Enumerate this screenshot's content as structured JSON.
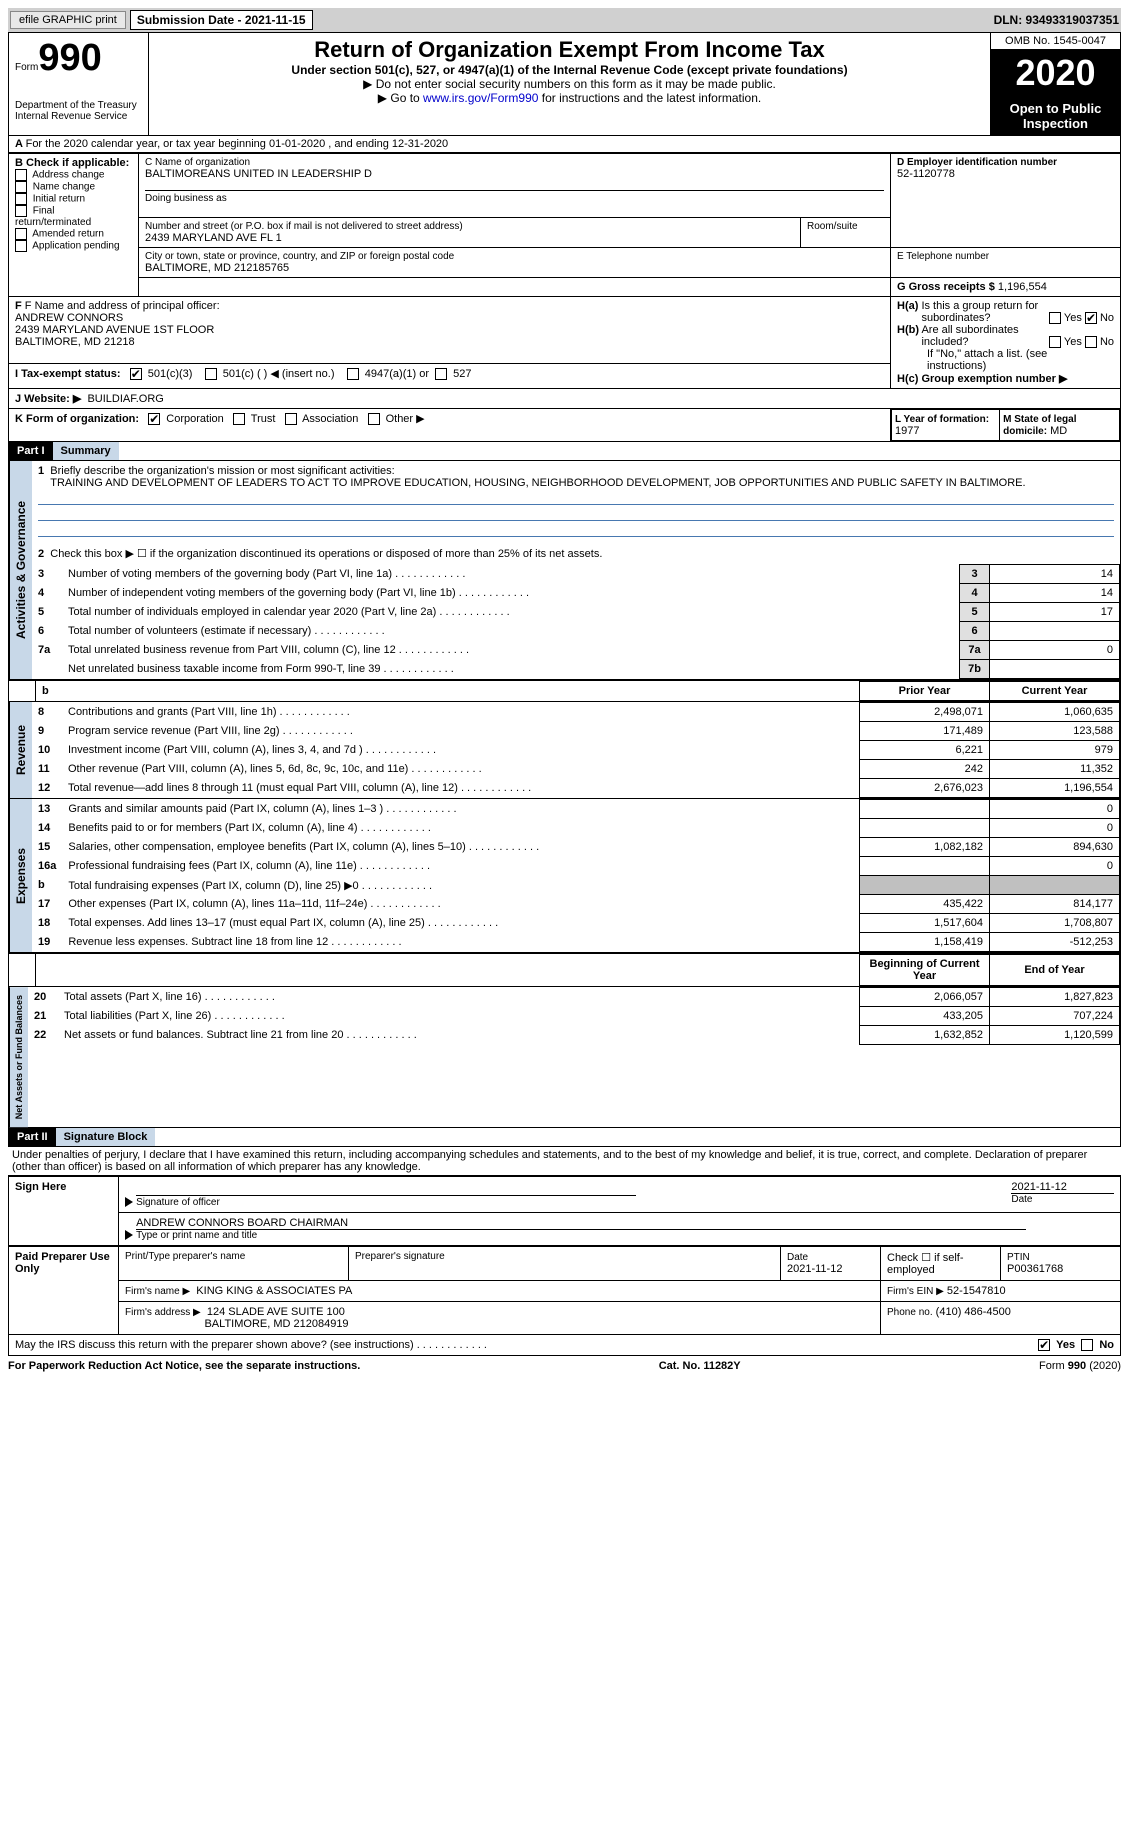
{
  "header_bar": {
    "efile_btn": "efile GRAPHIC print",
    "sub_date_label": "Submission Date - 2021-11-15",
    "dln": "DLN: 93493319037351"
  },
  "form_header": {
    "form_label": "Form",
    "form_num": "990",
    "dept1": "Department of the Treasury",
    "dept2": "Internal Revenue Service",
    "title": "Return of Organization Exempt From Income Tax",
    "subtitle": "Under section 501(c), 527, or 4947(a)(1) of the Internal Revenue Code (except private foundations)",
    "instr1": "▶ Do not enter social security numbers on this form as it may be made public.",
    "instr2_a": "▶ Go to ",
    "instr2_link": "www.irs.gov/Form990",
    "instr2_b": " for instructions and the latest information.",
    "omb": "OMB No. 1545-0047",
    "year": "2020",
    "open1": "Open to Public",
    "open2": "Inspection"
  },
  "line_A": "For the 2020 calendar year, or tax year beginning 01-01-2020   , and ending 12-31-2020",
  "section_B": {
    "label": "B Check if applicable:",
    "opts": [
      "Address change",
      "Name change",
      "Initial return",
      "Final return/terminated",
      "Amended return",
      "Application pending"
    ]
  },
  "section_C": {
    "name_label": "C Name of organization",
    "name": "BALTIMOREANS UNITED IN LEADERSHIP D",
    "dba_label": "Doing business as",
    "addr_label": "Number and street (or P.O. box if mail is not delivered to street address)",
    "room_label": "Room/suite",
    "addr": "2439 MARYLAND AVE FL 1",
    "city_label": "City or town, state or province, country, and ZIP or foreign postal code",
    "city": "BALTIMORE, MD  212185765"
  },
  "section_D": {
    "label": "D Employer identification number",
    "val": "52-1120778"
  },
  "section_E": {
    "label": "E Telephone number"
  },
  "section_G": {
    "label": "G Gross receipts $",
    "val": "1,196,554"
  },
  "section_F": {
    "label": "F  Name and address of principal officer:",
    "name": "ANDREW CONNORS",
    "addr1": "2439 MARYLAND AVENUE 1ST FLOOR",
    "addr2": "BALTIMORE, MD  21218"
  },
  "section_H": {
    "a_label": "H(a)  Is this a group return for subordinates?",
    "b_label": "H(b)  Are all subordinates included?",
    "b_note": "If \"No,\" attach a list. (see instructions)",
    "c_label": "H(c)  Group exemption number ▶",
    "yes": "Yes",
    "no": "No"
  },
  "section_I": {
    "label": "I  Tax-exempt status:",
    "o1": "501(c)(3)",
    "o2": "501(c) (  ) ◀ (insert no.)",
    "o3": "4947(a)(1) or",
    "o4": "527"
  },
  "section_J": {
    "label": "J  Website: ▶",
    "val": "BUILDIAF.ORG"
  },
  "section_K": {
    "label": "K Form of organization:",
    "o1": "Corporation",
    "o2": "Trust",
    "o3": "Association",
    "o4": "Other ▶"
  },
  "section_L": {
    "label": "L Year of formation:",
    "val": "1977"
  },
  "section_M": {
    "label": "M State of legal domicile:",
    "val": "MD"
  },
  "part1": {
    "num": "Part I",
    "title": "Summary",
    "l1_label": "Briefly describe the organization's mission or most significant activities:",
    "l1_text": "TRAINING AND DEVELOPMENT OF LEADERS TO ACT TO IMPROVE EDUCATION, HOUSING, NEIGHBORHOOD DEVELOPMENT, JOB OPPORTUNITIES AND PUBLIC SAFETY IN BALTIMORE.",
    "l2": "Check this box ▶ ☐  if the organization discontinued its operations or disposed of more than 25% of its net assets.",
    "gov_tab": "Activities & Governance",
    "rev_tab": "Revenue",
    "exp_tab": "Expenses",
    "net_tab": "Net Assets or Fund Balances",
    "rows_gov": [
      {
        "n": "3",
        "t": "Number of voting members of the governing body (Part VI, line 1a)",
        "k": "3",
        "v": "14"
      },
      {
        "n": "4",
        "t": "Number of independent voting members of the governing body (Part VI, line 1b)",
        "k": "4",
        "v": "14"
      },
      {
        "n": "5",
        "t": "Total number of individuals employed in calendar year 2020 (Part V, line 2a)",
        "k": "5",
        "v": "17"
      },
      {
        "n": "6",
        "t": "Total number of volunteers (estimate if necessary)",
        "k": "6",
        "v": ""
      },
      {
        "n": "7a",
        "t": "Total unrelated business revenue from Part VIII, column (C), line 12",
        "k": "7a",
        "v": "0"
      },
      {
        "n": "",
        "t": "Net unrelated business taxable income from Form 990-T, line 39",
        "k": "7b",
        "v": ""
      }
    ],
    "py_hdr": "Prior Year",
    "cy_hdr": "Current Year",
    "rows_rev": [
      {
        "n": "8",
        "t": "Contributions and grants (Part VIII, line 1h)",
        "py": "2,498,071",
        "cy": "1,060,635"
      },
      {
        "n": "9",
        "t": "Program service revenue (Part VIII, line 2g)",
        "py": "171,489",
        "cy": "123,588"
      },
      {
        "n": "10",
        "t": "Investment income (Part VIII, column (A), lines 3, 4, and 7d )",
        "py": "6,221",
        "cy": "979"
      },
      {
        "n": "11",
        "t": "Other revenue (Part VIII, column (A), lines 5, 6d, 8c, 9c, 10c, and 11e)",
        "py": "242",
        "cy": "11,352"
      },
      {
        "n": "12",
        "t": "Total revenue—add lines 8 through 11 (must equal Part VIII, column (A), line 12)",
        "py": "2,676,023",
        "cy": "1,196,554"
      }
    ],
    "rows_exp": [
      {
        "n": "13",
        "t": "Grants and similar amounts paid (Part IX, column (A), lines 1–3 )",
        "py": "",
        "cy": "0"
      },
      {
        "n": "14",
        "t": "Benefits paid to or for members (Part IX, column (A), line 4)",
        "py": "",
        "cy": "0"
      },
      {
        "n": "15",
        "t": "Salaries, other compensation, employee benefits (Part IX, column (A), lines 5–10)",
        "py": "1,082,182",
        "cy": "894,630"
      },
      {
        "n": "16a",
        "t": "Professional fundraising fees (Part IX, column (A), line 11e)",
        "py": "",
        "cy": "0"
      },
      {
        "n": "b",
        "t": "Total fundraising expenses (Part IX, column (D), line 25) ▶0",
        "py": "SHADE",
        "cy": "SHADE"
      },
      {
        "n": "17",
        "t": "Other expenses (Part IX, column (A), lines 11a–11d, 11f–24e)",
        "py": "435,422",
        "cy": "814,177"
      },
      {
        "n": "18",
        "t": "Total expenses. Add lines 13–17 (must equal Part IX, column (A), line 25)",
        "py": "1,517,604",
        "cy": "1,708,807"
      },
      {
        "n": "19",
        "t": "Revenue less expenses. Subtract line 18 from line 12",
        "py": "1,158,419",
        "cy": "-512,253"
      }
    ],
    "boy_hdr": "Beginning of Current Year",
    "eoy_hdr": "End of Year",
    "rows_net": [
      {
        "n": "20",
        "t": "Total assets (Part X, line 16)",
        "py": "2,066,057",
        "cy": "1,827,823"
      },
      {
        "n": "21",
        "t": "Total liabilities (Part X, line 26)",
        "py": "433,205",
        "cy": "707,224"
      },
      {
        "n": "22",
        "t": "Net assets or fund balances. Subtract line 21 from line 20",
        "py": "1,632,852",
        "cy": "1,120,599"
      }
    ]
  },
  "part2": {
    "num": "Part II",
    "title": "Signature Block",
    "decl": "Under penalties of perjury, I declare that I have examined this return, including accompanying schedules and statements, and to the best of my knowledge and belief, it is true, correct, and complete. Declaration of preparer (other than officer) is based on all information of which preparer has any knowledge.",
    "sign_here": "Sign Here",
    "sig_officer": "Signature of officer",
    "sig_date": "2021-11-12",
    "date_label": "Date",
    "name_title": "ANDREW CONNORS  BOARD CHAIRMAN",
    "name_title_label": "Type or print name and title",
    "paid": "Paid Preparer Use Only",
    "p_name_label": "Print/Type preparer's name",
    "p_sig_label": "Preparer's signature",
    "p_date_label": "Date",
    "p_date": "2021-11-12",
    "p_check_label": "Check ☐  if self-employed",
    "ptin_label": "PTIN",
    "ptin": "P00361768",
    "firm_name_label": "Firm's name    ▶",
    "firm_name": "KING KING & ASSOCIATES PA",
    "firm_ein_label": "Firm's EIN ▶",
    "firm_ein": "52-1547810",
    "firm_addr_label": "Firm's address ▶",
    "firm_addr1": "124 SLADE AVE SUITE 100",
    "firm_addr2": "BALTIMORE, MD  212084919",
    "phone_label": "Phone no.",
    "phone": "(410) 486-4500",
    "discuss": "May the IRS discuss this return with the preparer shown above? (see instructions)"
  },
  "footer": {
    "left": "For Paperwork Reduction Act Notice, see the separate instructions.",
    "mid": "Cat. No. 11282Y",
    "right": "Form 990 (2020)"
  }
}
